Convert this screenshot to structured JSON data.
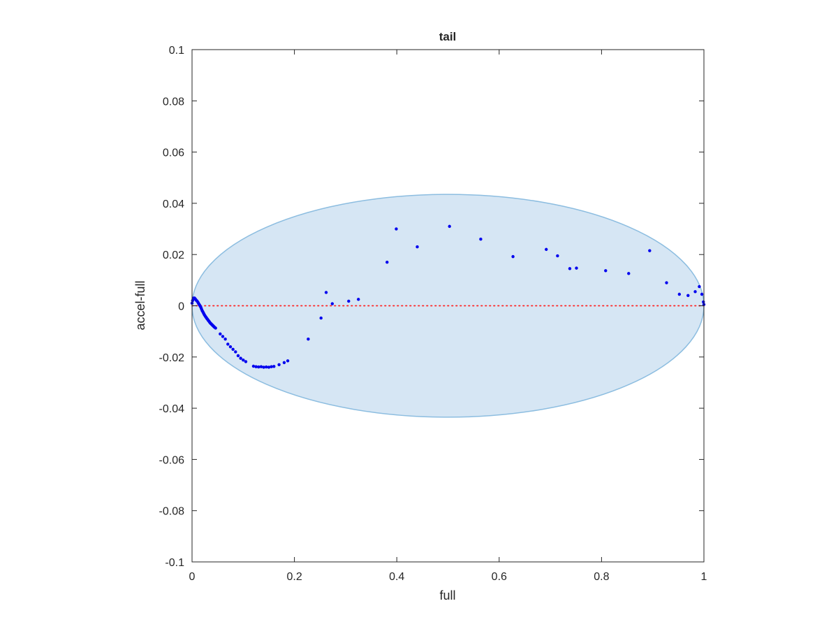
{
  "chart_data": {
    "type": "scatter",
    "title": "tail",
    "xlabel": "full",
    "ylabel": "accel-full",
    "xlim": [
      0,
      1
    ],
    "ylim": [
      -0.1,
      0.1
    ],
    "xticks": [
      0,
      0.2,
      0.4,
      0.6,
      0.8,
      1
    ],
    "xtick_labels": [
      "0",
      "0.2",
      "0.4",
      "0.6",
      "0.8",
      "1"
    ],
    "yticks": [
      -0.1,
      -0.08,
      -0.06,
      -0.04,
      -0.02,
      0,
      0.02,
      0.04,
      0.06,
      0.08,
      0.1
    ],
    "ytick_labels": [
      "-0.1",
      "-0.08",
      "-0.06",
      "-0.04",
      "-0.02",
      "0",
      "0.02",
      "0.04",
      "0.06",
      "0.08",
      "0.1"
    ],
    "grid": false,
    "colors": {
      "points": "#0000ee",
      "ellipse_fill": "#d6e6f4",
      "ellipse_edge": "#8cbde0",
      "zero_line": "#ff2020",
      "axes": "#262626"
    },
    "ellipse": {
      "cx": 0.5,
      "cy": 0,
      "rx": 0.5,
      "ry": 0.0435
    },
    "reference_line": {
      "y": 0,
      "style": "dotted"
    },
    "points": [
      [
        0.0,
        0.001
      ],
      [
        0.001,
        0.002
      ],
      [
        0.002,
        0.0025
      ],
      [
        0.003,
        0.003
      ],
      [
        0.004,
        0.0028
      ],
      [
        0.005,
        0.003
      ],
      [
        0.006,
        0.0027
      ],
      [
        0.007,
        0.0025
      ],
      [
        0.008,
        0.0022
      ],
      [
        0.009,
        0.002
      ],
      [
        0.01,
        0.0018
      ],
      [
        0.011,
        0.0015
      ],
      [
        0.012,
        0.0012
      ],
      [
        0.013,
        0.0008
      ],
      [
        0.014,
        0.0005
      ],
      [
        0.015,
        0.0002
      ],
      [
        0.016,
        -0.0002
      ],
      [
        0.017,
        -0.0005
      ],
      [
        0.018,
        -0.001
      ],
      [
        0.019,
        -0.0015
      ],
      [
        0.02,
        -0.002
      ],
      [
        0.021,
        -0.0023
      ],
      [
        0.022,
        -0.0027
      ],
      [
        0.023,
        -0.0031
      ],
      [
        0.024,
        -0.0035
      ],
      [
        0.025,
        -0.0038
      ],
      [
        0.026,
        -0.0041
      ],
      [
        0.027,
        -0.0044
      ],
      [
        0.028,
        -0.0047
      ],
      [
        0.029,
        -0.005
      ],
      [
        0.03,
        -0.0052
      ],
      [
        0.031,
        -0.0055
      ],
      [
        0.032,
        -0.0058
      ],
      [
        0.033,
        -0.006
      ],
      [
        0.034,
        -0.0063
      ],
      [
        0.035,
        -0.0066
      ],
      [
        0.036,
        -0.0068
      ],
      [
        0.037,
        -0.007
      ],
      [
        0.038,
        -0.0072
      ],
      [
        0.039,
        -0.0074
      ],
      [
        0.04,
        -0.0076
      ],
      [
        0.041,
        -0.0078
      ],
      [
        0.042,
        -0.008
      ],
      [
        0.043,
        -0.0082
      ],
      [
        0.044,
        -0.0084
      ],
      [
        0.046,
        -0.0087
      ],
      [
        0.055,
        -0.011
      ],
      [
        0.06,
        -0.012
      ],
      [
        0.065,
        -0.013
      ],
      [
        0.07,
        -0.015
      ],
      [
        0.075,
        -0.016
      ],
      [
        0.08,
        -0.017
      ],
      [
        0.085,
        -0.018
      ],
      [
        0.09,
        -0.0195
      ],
      [
        0.095,
        -0.0205
      ],
      [
        0.1,
        -0.0212
      ],
      [
        0.105,
        -0.0218
      ],
      [
        0.12,
        -0.0236
      ],
      [
        0.125,
        -0.0238
      ],
      [
        0.13,
        -0.0239
      ],
      [
        0.135,
        -0.0238
      ],
      [
        0.14,
        -0.024
      ],
      [
        0.145,
        -0.0239
      ],
      [
        0.15,
        -0.024
      ],
      [
        0.155,
        -0.0238
      ],
      [
        0.16,
        -0.0237
      ],
      [
        0.17,
        -0.023
      ],
      [
        0.18,
        -0.0222
      ],
      [
        0.187,
        -0.0215
      ],
      [
        0.227,
        -0.013
      ],
      [
        0.252,
        -0.0048
      ],
      [
        0.262,
        0.0052
      ],
      [
        0.274,
        0.0008
      ],
      [
        0.306,
        0.0018
      ],
      [
        0.325,
        0.0025
      ],
      [
        0.381,
        0.017
      ],
      [
        0.399,
        0.03
      ],
      [
        0.44,
        0.023
      ],
      [
        0.503,
        0.031
      ],
      [
        0.564,
        0.026
      ],
      [
        0.627,
        0.0192
      ],
      [
        0.692,
        0.022
      ],
      [
        0.714,
        0.0195
      ],
      [
        0.738,
        0.0145
      ],
      [
        0.751,
        0.0147
      ],
      [
        0.808,
        0.0137
      ],
      [
        0.853,
        0.0126
      ],
      [
        0.894,
        0.0215
      ],
      [
        0.927,
        0.009
      ],
      [
        0.952,
        0.0045
      ],
      [
        0.969,
        0.004
      ],
      [
        0.983,
        0.0055
      ],
      [
        0.991,
        0.0075
      ],
      [
        0.996,
        0.0045
      ],
      [
        0.999,
        0.0015
      ],
      [
        1.0,
        0.0005
      ]
    ]
  }
}
